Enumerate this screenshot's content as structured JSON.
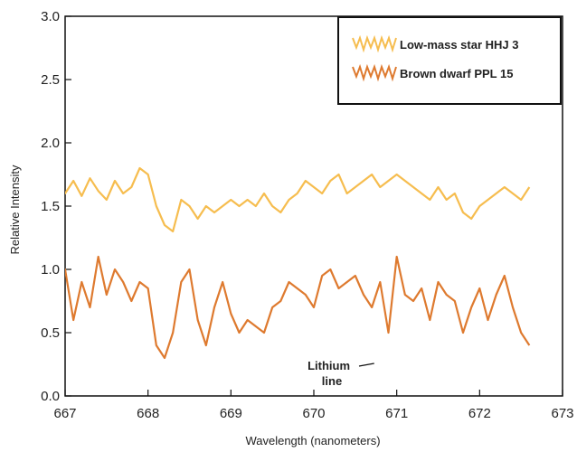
{
  "chart_data": {
    "type": "line",
    "title": "",
    "xlabel": "Wavelength (nanometers)",
    "ylabel": "Relative Intensity",
    "xlim": [
      667,
      673
    ],
    "ylim": [
      0,
      3.0
    ],
    "x_ticks": [
      "667",
      "668",
      "669",
      "670",
      "671",
      "672",
      "673"
    ],
    "y_ticks": [
      "0.0",
      "0.5",
      "1.0",
      "1.5",
      "2.0",
      "2.5",
      "3.0"
    ],
    "grid": false,
    "legend_position": "top-right",
    "series": [
      {
        "name": "Low-mass star HHJ 3",
        "color": "#f6bd4f",
        "x": [
          666.9,
          667.0,
          667.1,
          667.2,
          667.3,
          667.4,
          667.5,
          667.6,
          667.7,
          667.8,
          667.9,
          668.0,
          668.1,
          668.2,
          668.3,
          668.4,
          668.5,
          668.6,
          668.7,
          668.8,
          668.9,
          669.0,
          669.1,
          669.2,
          669.3,
          669.4,
          669.5,
          669.6,
          669.7,
          669.8,
          669.9,
          670.0,
          670.1,
          670.2,
          670.3,
          670.4,
          670.5,
          670.6,
          670.7,
          670.8,
          670.9,
          671.0,
          671.1,
          671.2,
          671.3,
          671.4,
          671.5,
          671.6,
          671.7,
          671.8,
          671.9,
          672.0,
          672.1,
          672.2,
          672.3,
          672.4,
          672.5,
          672.6
        ],
        "y": [
          1.65,
          1.6,
          1.7,
          1.58,
          1.72,
          1.62,
          1.55,
          1.7,
          1.6,
          1.65,
          1.8,
          1.75,
          1.5,
          1.35,
          1.3,
          1.55,
          1.5,
          1.4,
          1.5,
          1.45,
          1.5,
          1.55,
          1.5,
          1.55,
          1.5,
          1.6,
          1.5,
          1.45,
          1.55,
          1.6,
          1.7,
          1.65,
          1.6,
          1.7,
          1.75,
          1.6,
          1.65,
          1.7,
          1.75,
          1.65,
          1.7,
          1.75,
          1.7,
          1.65,
          1.6,
          1.55,
          1.65,
          1.55,
          1.6,
          1.45,
          1.4,
          1.5,
          1.55,
          1.6,
          1.65,
          1.6,
          1.55,
          1.65
        ]
      },
      {
        "name": "Brown dwarf PPL 15",
        "color": "#de7a2f",
        "x": [
          666.9,
          667.0,
          667.1,
          667.2,
          667.3,
          667.4,
          667.5,
          667.6,
          667.7,
          667.8,
          667.9,
          668.0,
          668.1,
          668.2,
          668.3,
          668.4,
          668.5,
          668.6,
          668.7,
          668.8,
          668.9,
          669.0,
          669.1,
          669.2,
          669.3,
          669.4,
          669.5,
          669.6,
          669.7,
          669.8,
          669.9,
          670.0,
          670.1,
          670.2,
          670.3,
          670.4,
          670.5,
          670.6,
          670.7,
          670.8,
          670.9,
          671.0,
          671.1,
          671.2,
          671.3,
          671.4,
          671.5,
          671.6,
          671.7,
          671.8,
          671.9,
          672.0,
          672.1,
          672.2,
          672.3,
          672.4,
          672.5,
          672.6
        ],
        "y": [
          0.8,
          1.0,
          0.6,
          0.9,
          0.7,
          1.1,
          0.8,
          1.0,
          0.9,
          0.75,
          0.9,
          0.85,
          0.4,
          0.3,
          0.5,
          0.9,
          1.0,
          0.6,
          0.4,
          0.7,
          0.9,
          0.65,
          0.5,
          0.6,
          0.55,
          0.5,
          0.7,
          0.75,
          0.9,
          0.85,
          0.8,
          0.7,
          0.95,
          1.0,
          0.85,
          0.9,
          0.95,
          0.8,
          0.7,
          0.9,
          0.5,
          1.1,
          0.8,
          0.75,
          0.85,
          0.6,
          0.9,
          0.8,
          0.75,
          0.5,
          0.7,
          0.85,
          0.6,
          0.8,
          0.95,
          0.7,
          0.5,
          0.4
        ]
      }
    ],
    "annotations": [
      {
        "text": "Lithium",
        "text2": "line",
        "x": 670.75,
        "y": 0.1
      }
    ]
  }
}
